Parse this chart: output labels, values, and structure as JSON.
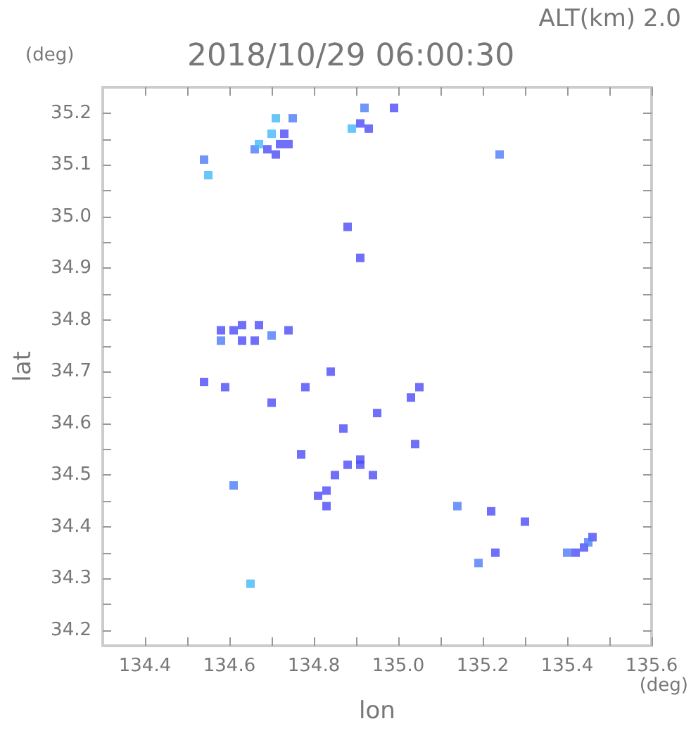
{
  "chart_data": {
    "type": "scatter",
    "title": "2018/10/29 06:00:30",
    "subtitle": "ALT(km) 2.0",
    "xlabel": "lon",
    "ylabel": "lat",
    "annotations": [
      "(deg)",
      "(deg)"
    ],
    "xlim": [
      134.3,
      135.6
    ],
    "ylim": [
      34.17,
      35.25
    ],
    "xticks": [
      134.4,
      {
        "value": 134.5,
        "label": null
      },
      134.6,
      {
        "value": 134.7,
        "label": null
      },
      134.8,
      {
        "value": 134.9,
        "label": null
      },
      {
        "value": 135.0,
        "label": "135.0"
      },
      {
        "value": 135.1,
        "label": null
      },
      135.2,
      {
        "value": 135.3,
        "label": null
      },
      135.4,
      {
        "value": 135.5,
        "label": null
      },
      135.6
    ],
    "yticks": [
      34.2,
      {
        "value": 34.25,
        "label": null
      },
      34.3,
      {
        "value": 34.35,
        "label": null
      },
      34.4,
      {
        "value": 34.45,
        "label": null
      },
      34.5,
      {
        "value": 34.55,
        "label": null
      },
      34.6,
      {
        "value": 34.65,
        "label": null
      },
      34.7,
      {
        "value": 34.75,
        "label": null
      },
      34.8,
      {
        "value": 34.85,
        "label": null
      },
      34.9,
      {
        "value": 34.95,
        "label": null
      },
      {
        "value": 35.0,
        "label": "35.0"
      },
      {
        "value": 35.05,
        "label": null
      },
      35.1,
      {
        "value": 35.15,
        "label": null
      },
      35.2
    ],
    "grid": false,
    "marker": "square",
    "series": [
      {
        "color": "#4b4bf8",
        "x": [
          134.99,
          134.91,
          134.93,
          134.73,
          134.74,
          134.69,
          134.72,
          134.71,
          134.88,
          134.91,
          134.58,
          134.61,
          134.63,
          134.63,
          134.67,
          134.66,
          134.74,
          134.54,
          134.59,
          134.7,
          134.84,
          134.78,
          135.05,
          135.03,
          134.95,
          134.87,
          135.04,
          134.77,
          134.88,
          134.91,
          134.91,
          134.85,
          134.94,
          134.83,
          134.81,
          134.83,
          135.22,
          135.3,
          135.23,
          135.42,
          135.44,
          135.46
        ],
        "values": [
          35.21,
          35.18,
          35.17,
          35.16,
          35.14,
          35.13,
          35.14,
          35.12,
          34.98,
          34.92,
          34.78,
          34.78,
          34.79,
          34.76,
          34.79,
          34.76,
          34.78,
          34.68,
          34.67,
          34.64,
          34.7,
          34.67,
          34.67,
          34.65,
          34.62,
          34.59,
          34.56,
          34.54,
          34.52,
          34.53,
          34.52,
          34.5,
          34.5,
          34.47,
          34.46,
          34.44,
          34.43,
          34.41,
          34.35,
          34.35,
          34.36,
          34.38
        ]
      },
      {
        "color": "#4d7cf8",
        "x": [
          134.92,
          134.75,
          134.66,
          134.54,
          135.24,
          134.58,
          134.7,
          134.61,
          135.14,
          135.19,
          135.4,
          135.45
        ],
        "values": [
          35.21,
          35.19,
          35.13,
          35.11,
          35.12,
          34.76,
          34.77,
          34.48,
          34.44,
          34.33,
          34.35,
          34.37
        ]
      },
      {
        "color": "#44b8f8",
        "x": [
          134.71,
          134.7,
          134.67,
          134.55,
          134.65,
          134.89
        ],
        "values": [
          35.19,
          35.16,
          35.14,
          35.08,
          34.29,
          35.17
        ]
      }
    ]
  }
}
